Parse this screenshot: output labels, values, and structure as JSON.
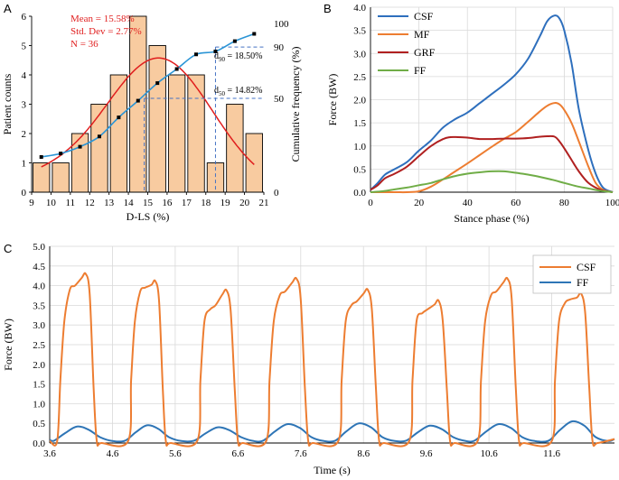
{
  "colors": {
    "bar_fill": "#f8cba0",
    "bar_stroke": "#000000",
    "normal_curve": "#e01e1e",
    "cumulative": "#2b95d6",
    "dashed": "#4472c4",
    "csf": "#2e6fbd",
    "mf": "#ed7d31",
    "grf": "#b02020",
    "ff": "#70ad47",
    "c_csf": "#ed7d31",
    "c_ff": "#2e75b6"
  },
  "chart_data": [
    {
      "id": "A",
      "type": "bar",
      "panel_label": "A",
      "xlabel": "D-LS (%)",
      "ylabel": "Patient counts",
      "y2label": "Cumulative frequency (%)",
      "x_ticks": [
        "9",
        "10",
        "11",
        "12",
        "13",
        "14",
        "15",
        "16",
        "17",
        "18",
        "19",
        "20",
        "21"
      ],
      "y_ticks": [
        "0",
        "1",
        "2",
        "3",
        "4",
        "5",
        "6"
      ],
      "y2_ticks": [
        "0",
        "50",
        "90",
        "100"
      ],
      "xlim": [
        9,
        21
      ],
      "ylim": [
        0,
        6
      ],
      "bins": [
        {
          "center": 9.5,
          "count": 1
        },
        {
          "center": 10.5,
          "count": 1
        },
        {
          "center": 11.5,
          "count": 2
        },
        {
          "center": 12.5,
          "count": 3
        },
        {
          "center": 13.5,
          "count": 4
        },
        {
          "center": 14.5,
          "count": 6
        },
        {
          "center": 15.5,
          "count": 5
        },
        {
          "center": 16.5,
          "count": 4
        },
        {
          "center": 17.5,
          "count": 4
        },
        {
          "center": 18.5,
          "count": 1
        },
        {
          "center": 19.5,
          "count": 3
        },
        {
          "center": 20.5,
          "count": 2
        }
      ],
      "normal_fit": {
        "mean": 15.58,
        "sd": 2.77,
        "x_range": [
          9.5,
          20.5
        ]
      },
      "cumulative_points": [
        {
          "x": 9.5,
          "y": 1.2
        },
        {
          "x": 10.5,
          "y": 1.32
        },
        {
          "x": 11.5,
          "y": 1.55
        },
        {
          "x": 12.5,
          "y": 1.9
        },
        {
          "x": 13.5,
          "y": 2.55
        },
        {
          "x": 14.5,
          "y": 3.12
        },
        {
          "x": 15.5,
          "y": 3.72
        },
        {
          "x": 16.5,
          "y": 4.2
        },
        {
          "x": 17.5,
          "y": 4.7
        },
        {
          "x": 18.5,
          "y": 4.8
        },
        {
          "x": 19.5,
          "y": 5.15
        },
        {
          "x": 20.5,
          "y": 5.4
        }
      ],
      "stats": [
        "Mean = 15.58%",
        "Std. Dev = 2.77%",
        "N = 36"
      ],
      "d90_label": "18.50%",
      "d50_label": "14.82%",
      "d90": {
        "x": 18.5,
        "y_count": 4.95
      },
      "d50": {
        "x": 14.82,
        "y_count": 3.2
      }
    },
    {
      "id": "B",
      "type": "line",
      "panel_label": "B",
      "xlabel": "Stance phase (%)",
      "ylabel": "Force (BW)",
      "xlim": [
        0,
        100
      ],
      "ylim": [
        0,
        4.0
      ],
      "x_ticks": [
        "0",
        "20",
        "40",
        "60",
        "80",
        "100"
      ],
      "y_ticks": [
        "0.0",
        "0.5",
        "1.0",
        "1.5",
        "2.0",
        "2.5",
        "3.0",
        "3.5",
        "4.0"
      ],
      "series": [
        {
          "name": "CSF",
          "color_key": "csf",
          "x": [
            0,
            3,
            6,
            10,
            15,
            20,
            25,
            30,
            35,
            40,
            45,
            50,
            55,
            60,
            65,
            70,
            73,
            76,
            78,
            80,
            83,
            86,
            90,
            93,
            96,
            100
          ],
          "y": [
            0.05,
            0.2,
            0.38,
            0.5,
            0.65,
            0.9,
            1.12,
            1.4,
            1.58,
            1.72,
            1.92,
            2.12,
            2.32,
            2.55,
            2.88,
            3.38,
            3.7,
            3.82,
            3.76,
            3.5,
            2.8,
            1.8,
            0.9,
            0.4,
            0.1,
            0.0
          ]
        },
        {
          "name": "MF",
          "color_key": "mf",
          "x": [
            0,
            10,
            15,
            20,
            25,
            30,
            35,
            40,
            45,
            50,
            55,
            60,
            65,
            70,
            73,
            76,
            78,
            80,
            83,
            86,
            90,
            93,
            96,
            100
          ],
          "y": [
            0,
            0,
            0,
            0.02,
            0.12,
            0.28,
            0.45,
            0.62,
            0.8,
            0.98,
            1.15,
            1.3,
            1.52,
            1.75,
            1.87,
            1.93,
            1.9,
            1.78,
            1.5,
            1.1,
            0.55,
            0.2,
            0.05,
            0
          ]
        },
        {
          "name": "GRF",
          "color_key": "grf",
          "x": [
            0,
            3,
            6,
            10,
            15,
            20,
            25,
            30,
            33,
            36,
            40,
            45,
            50,
            55,
            60,
            65,
            70,
            73,
            76,
            78,
            80,
            83,
            86,
            90,
            95,
            100
          ],
          "y": [
            0.05,
            0.15,
            0.3,
            0.4,
            0.55,
            0.78,
            1.0,
            1.15,
            1.19,
            1.19,
            1.18,
            1.15,
            1.15,
            1.16,
            1.16,
            1.17,
            1.2,
            1.21,
            1.2,
            1.1,
            0.95,
            0.7,
            0.45,
            0.2,
            0.05,
            0
          ]
        },
        {
          "name": "FF",
          "color_key": "ff",
          "x": [
            0,
            5,
            10,
            15,
            20,
            25,
            30,
            35,
            40,
            45,
            50,
            55,
            60,
            65,
            70,
            75,
            80,
            85,
            90,
            95,
            100
          ],
          "y": [
            0,
            0.02,
            0.06,
            0.1,
            0.15,
            0.2,
            0.28,
            0.35,
            0.4,
            0.43,
            0.45,
            0.45,
            0.42,
            0.38,
            0.33,
            0.27,
            0.2,
            0.13,
            0.08,
            0.03,
            0
          ]
        }
      ]
    },
    {
      "id": "C",
      "type": "line",
      "panel_label": "C",
      "xlabel": "Time (s)",
      "ylabel": "Force (BW)",
      "xlim": [
        3.6,
        12.6
      ],
      "ylim": [
        0,
        5.0
      ],
      "x_ticks": [
        "3.6",
        "4.6",
        "5.6",
        "6.6",
        "7.6",
        "8.6",
        "9.6",
        "10.6",
        "11.6"
      ],
      "y_ticks": [
        "0.0",
        "0.5",
        "1.0",
        "1.5",
        "2.0",
        "2.5",
        "3.0",
        "3.5",
        "4.0",
        "4.5",
        "5.0"
      ],
      "cycles": [
        {
          "start": 3.72,
          "end": 4.35,
          "peak_csf": 4.3,
          "peak_ff": 0.42,
          "shoulder": 3.9
        },
        {
          "start": 4.85,
          "end": 5.45,
          "peak_csf": 4.12,
          "peak_ff": 0.45,
          "shoulder": 3.85
        },
        {
          "start": 5.95,
          "end": 6.6,
          "peak_csf": 3.88,
          "peak_ff": 0.4,
          "shoulder": 3.4
        },
        {
          "start": 7.05,
          "end": 7.72,
          "peak_csf": 4.18,
          "peak_ff": 0.48,
          "shoulder": 3.75
        },
        {
          "start": 8.2,
          "end": 8.85,
          "peak_csf": 3.9,
          "peak_ff": 0.5,
          "shoulder": 3.5
        },
        {
          "start": 9.33,
          "end": 9.98,
          "peak_csf": 3.62,
          "peak_ff": 0.44,
          "shoulder": 3.3
        },
        {
          "start": 10.42,
          "end": 11.08,
          "peak_csf": 4.18,
          "peak_ff": 0.48,
          "shoulder": 3.75
        },
        {
          "start": 11.6,
          "end": 12.25,
          "peak_csf": 3.8,
          "peak_ff": 0.55,
          "shoulder": 3.55
        }
      ],
      "series": [
        {
          "name": "CSF",
          "color_key": "c_csf"
        },
        {
          "name": "FF",
          "color_key": "c_ff"
        }
      ]
    }
  ]
}
